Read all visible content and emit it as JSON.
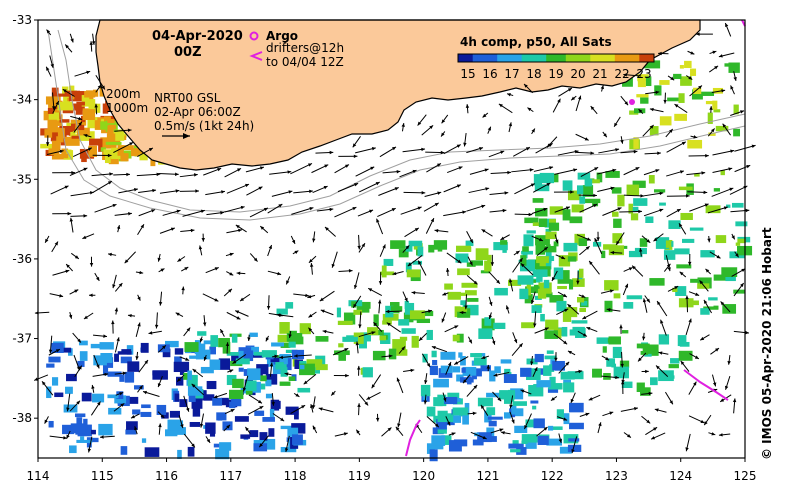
{
  "map": {
    "date_label": "04-Apr-2020",
    "time_label": "00Z",
    "legend_argo": "Argo",
    "legend_drifters_line1": "drifters@12h",
    "legend_drifters_line2": "to 04/04 12Z",
    "colorbar_title": "4h comp, p50, All Sats",
    "colorbar_ticks": [
      "15",
      "16",
      "17",
      "18",
      "19",
      "20",
      "21",
      "22",
      "23"
    ],
    "colorbar_colors": [
      "#0a1a9a",
      "#1f5fd8",
      "#2aa3e8",
      "#1ec9a8",
      "#2fb82a",
      "#8fd61a",
      "#d8e020",
      "#e89a12",
      "#c8400a"
    ],
    "isobath_200": "200m",
    "isobath_1000": "1000m",
    "product_line1": "NRT00 GSL",
    "product_line2": "02-Apr 06:00Z",
    "scale_label": "0.5m/s (1kt 24h)",
    "credit": "© IMOS 05-Apr-2020 21:06 Hobart",
    "colors": {
      "land": "#fbc99a",
      "argo": "#e020e0",
      "drifter": "#e020e0",
      "isobath": "#a0a0a0"
    }
  },
  "axes": {
    "x_ticks": [
      "114",
      "115",
      "116",
      "117",
      "118",
      "119",
      "120",
      "121",
      "122",
      "123",
      "124",
      "125"
    ],
    "y_ticks": [
      "-33",
      "-34",
      "-35",
      "-36",
      "-37",
      "-38"
    ],
    "x_range": [
      114,
      125
    ],
    "y_range": [
      -38.5,
      -33
    ]
  }
}
